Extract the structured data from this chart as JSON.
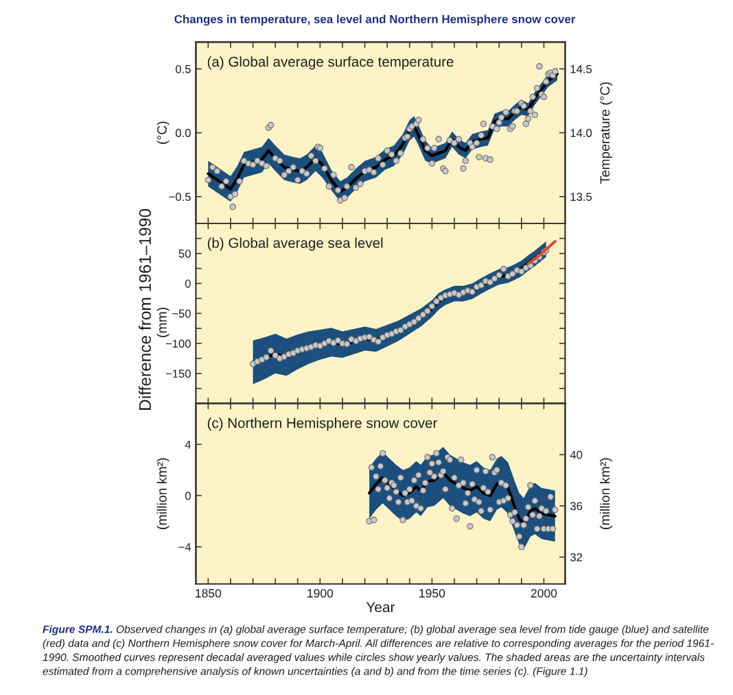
{
  "chart_data": [
    {
      "type": "line",
      "title": "Changes in temperature, sea level and Northern Hemisphere snow cover",
      "subtitle": "(a) Global average surface temperature",
      "ylabel": "(°C)",
      "y2label": "Temperature (°C)",
      "tick_labels": "y",
      "xlim": [
        1844.5,
        2009.5
      ],
      "xticks": [
        1850,
        {
          "value": 1860,
          "label": null
        },
        {
          "value": 1870,
          "label": null
        },
        {
          "value": 1880,
          "label": null
        },
        {
          "value": 1890,
          "label": null
        },
        1900,
        {
          "value": 1910,
          "label": null
        },
        {
          "value": 1920,
          "label": null
        },
        {
          "value": 1930,
          "label": null
        },
        {
          "value": 1940,
          "label": null
        },
        1950,
        {
          "value": 1960,
          "label": null
        },
        {
          "value": 1970,
          "label": null
        },
        {
          "value": 1980,
          "label": null
        },
        {
          "value": 1990,
          "label": null
        },
        2000
      ],
      "ylim": [
        -0.71,
        0.71
      ],
      "yticks": [
        {
          "value": -0.5,
          "label": "−0.5"
        },
        {
          "value": 0,
          "label": "0.0"
        },
        0.5
      ],
      "y2lim": [
        13.29,
        14.71
      ],
      "y2ticks": [
        13.5,
        {
          "value": 14,
          "label": "14.0"
        },
        14.5
      ],
      "series": [
        {
          "color": "#000000",
          "line_style": "solid",
          "x": [
            1850,
            1855,
            1860,
            1863,
            1866,
            1870,
            1874,
            1877,
            1880,
            1884,
            1888,
            1891,
            1894,
            1898,
            1901,
            1905,
            1909,
            1912,
            1916,
            1920,
            1925,
            1929,
            1933,
            1937,
            1940,
            1942,
            1944,
            1947,
            1950,
            1953,
            1956,
            1959,
            1962,
            1965,
            1968,
            1972,
            1975,
            1978,
            1981,
            1984,
            1987,
            1990,
            1993,
            1996,
            1999,
            2002,
            2006
          ],
          "values": [
            -0.32,
            -0.38,
            -0.44,
            -0.36,
            -0.25,
            -0.23,
            -0.21,
            -0.14,
            -0.2,
            -0.27,
            -0.29,
            -0.3,
            -0.27,
            -0.2,
            -0.25,
            -0.37,
            -0.46,
            -0.43,
            -0.36,
            -0.3,
            -0.27,
            -0.21,
            -0.18,
            -0.09,
            0.02,
            0.05,
            -0.02,
            -0.14,
            -0.18,
            -0.16,
            -0.14,
            -0.05,
            -0.11,
            -0.14,
            -0.07,
            -0.05,
            -0.04,
            0.09,
            0.11,
            0.11,
            0.16,
            0.2,
            0.18,
            0.27,
            0.34,
            0.41,
            0.46
          ],
          "lower": [
            -0.42,
            -0.48,
            -0.54,
            -0.46,
            -0.35,
            -0.33,
            -0.31,
            -0.24,
            -0.3,
            -0.37,
            -0.39,
            -0.4,
            -0.37,
            -0.3,
            -0.35,
            -0.45,
            -0.54,
            -0.51,
            -0.44,
            -0.38,
            -0.35,
            -0.29,
            -0.26,
            -0.17,
            -0.06,
            -0.03,
            -0.1,
            -0.22,
            -0.24,
            -0.22,
            -0.2,
            -0.11,
            -0.17,
            -0.2,
            -0.13,
            -0.11,
            -0.1,
            0.03,
            0.05,
            0.05,
            0.1,
            0.14,
            0.13,
            0.22,
            0.29,
            0.36,
            0.41
          ],
          "upper": [
            -0.22,
            -0.28,
            -0.34,
            -0.26,
            -0.15,
            -0.13,
            -0.11,
            -0.04,
            -0.1,
            -0.17,
            -0.19,
            -0.2,
            -0.17,
            -0.1,
            -0.15,
            -0.29,
            -0.38,
            -0.35,
            -0.28,
            -0.22,
            -0.19,
            -0.13,
            -0.1,
            -0.01,
            0.1,
            0.13,
            0.06,
            -0.06,
            -0.12,
            -0.1,
            -0.08,
            0.01,
            -0.05,
            -0.08,
            -0.01,
            0.01,
            0.02,
            0.15,
            0.17,
            0.17,
            0.22,
            0.26,
            0.23,
            0.32,
            0.39,
            0.46,
            0.51
          ]
        },
        {
          "type": "scatter",
          "color": "#c9c9c9",
          "marker": "circle",
          "x": [
            1850,
            1852,
            1854,
            1856,
            1858,
            1860,
            1861,
            1862,
            1864,
            1866,
            1868,
            1870,
            1872,
            1874,
            1876,
            1877,
            1878,
            1880,
            1882,
            1884,
            1886,
            1888,
            1890,
            1892,
            1894,
            1896,
            1898,
            1899,
            1900,
            1902,
            1904,
            1906,
            1908,
            1909,
            1911,
            1912,
            1914,
            1916,
            1918,
            1920,
            1922,
            1924,
            1926,
            1928,
            1930,
            1932,
            1934,
            1936,
            1938,
            1939,
            1940,
            1941,
            1943,
            1944,
            1946,
            1948,
            1950,
            1951,
            1953,
            1955,
            1956,
            1958,
            1960,
            1962,
            1964,
            1965,
            1967,
            1968,
            1970,
            1971,
            1972,
            1973,
            1974,
            1976,
            1977,
            1979,
            1980,
            1981,
            1983,
            1985,
            1986,
            1987,
            1988,
            1990,
            1991,
            1992,
            1993,
            1994,
            1995,
            1996,
            1997,
            1998,
            1999,
            2000,
            2001,
            2002,
            2003,
            2004,
            2005
          ],
          "values": [
            -0.37,
            -0.27,
            -0.3,
            -0.42,
            -0.38,
            -0.5,
            -0.58,
            -0.48,
            -0.38,
            -0.22,
            -0.24,
            -0.25,
            -0.22,
            -0.24,
            -0.26,
            0.04,
            0.06,
            -0.2,
            -0.22,
            -0.33,
            -0.3,
            -0.27,
            -0.37,
            -0.3,
            -0.32,
            -0.18,
            -0.22,
            -0.11,
            -0.12,
            -0.28,
            -0.42,
            -0.33,
            -0.45,
            -0.53,
            -0.51,
            -0.42,
            -0.27,
            -0.43,
            -0.4,
            -0.3,
            -0.29,
            -0.31,
            -0.2,
            -0.25,
            -0.14,
            -0.17,
            -0.22,
            -0.16,
            -0.04,
            -0.03,
            0.03,
            0.05,
            0.07,
            0.1,
            -0.05,
            -0.12,
            -0.24,
            -0.12,
            -0.05,
            -0.28,
            -0.3,
            -0.06,
            -0.08,
            -0.05,
            -0.28,
            -0.22,
            -0.08,
            -0.11,
            -0.08,
            -0.19,
            -0.02,
            0.07,
            -0.2,
            -0.21,
            0.05,
            0.03,
            0.08,
            0.12,
            0.16,
            0.03,
            0.05,
            0.17,
            0.17,
            0.23,
            0.21,
            0.07,
            0.11,
            0.17,
            0.28,
            0.14,
            0.35,
            0.52,
            0.3,
            0.28,
            0.4,
            0.46,
            0.47,
            0.45,
            0.48
          ]
        }
      ]
    },
    {
      "type": "line",
      "subtitle": "(b) Global average sea level",
      "ylabel": "(mm)",
      "tick_labels": "y",
      "annotations": [
        "Difference from 1961–1990"
      ],
      "xlim": [
        1844.5,
        2009.5
      ],
      "xticks": [
        1850,
        {
          "value": 1860,
          "label": null
        },
        {
          "value": 1870,
          "label": null
        },
        {
          "value": 1880,
          "label": null
        },
        {
          "value": 1890,
          "label": null
        },
        1900,
        {
          "value": 1910,
          "label": null
        },
        {
          "value": 1920,
          "label": null
        },
        {
          "value": 1930,
          "label": null
        },
        {
          "value": 1940,
          "label": null
        },
        1950,
        {
          "value": 1960,
          "label": null
        },
        {
          "value": 1970,
          "label": null
        },
        {
          "value": 1980,
          "label": null
        },
        {
          "value": 1990,
          "label": null
        },
        2000
      ],
      "ylim": [
        -200,
        100
      ],
      "yticks": [
        {
          "value": -175,
          "label": null
        },
        {
          "value": -150,
          "label": "−150"
        },
        {
          "value": -125,
          "label": null
        },
        {
          "value": -100,
          "label": "−100"
        },
        {
          "value": -75,
          "label": null
        },
        {
          "value": -50,
          "label": "−50"
        },
        {
          "value": -25,
          "label": null
        },
        0,
        {
          "value": 25,
          "label": null
        },
        50,
        {
          "value": 75,
          "label": null
        }
      ],
      "series": [
        {
          "color": "#000000",
          "line_style": "solid",
          "x": [
            1870,
            1875,
            1880,
            1885,
            1890,
            1895,
            1900,
            1905,
            1910,
            1915,
            1920,
            1925,
            1930,
            1935,
            1940,
            1945,
            1950,
            1953,
            1956,
            1960,
            1964,
            1968,
            1972,
            1976,
            1980,
            1984,
            1987,
            1990,
            1993,
            1996,
            1999,
            2001
          ],
          "values": [
            -131,
            -125,
            -117,
            -123,
            -114,
            -107,
            -102,
            -98,
            -102,
            -97,
            -92,
            -95,
            -87,
            -79,
            -68,
            -57,
            -42,
            -30,
            -23,
            -17,
            -17,
            -13,
            -4,
            4,
            11,
            14,
            19,
            25,
            34,
            42,
            51,
            57
          ],
          "lower": [
            -168,
            -160,
            -150,
            -154,
            -143,
            -134,
            -127,
            -122,
            -124,
            -118,
            -112,
            -114,
            -105,
            -96,
            -84,
            -72,
            -56,
            -44,
            -36,
            -30,
            -30,
            -26,
            -17,
            -9,
            -2,
            1,
            6,
            12,
            21,
            29,
            38,
            44
          ],
          "upper": [
            -95,
            -90,
            -84,
            -92,
            -85,
            -80,
            -77,
            -74,
            -80,
            -76,
            -72,
            -76,
            -69,
            -62,
            -52,
            -42,
            -28,
            -16,
            -10,
            -4,
            -4,
            0,
            9,
            17,
            24,
            27,
            32,
            38,
            47,
            55,
            64,
            70
          ]
        },
        {
          "type": "scatter",
          "color": "#c9c9c9",
          "marker": "circle",
          "x": [
            1870,
            1872,
            1874,
            1876,
            1878,
            1880,
            1882,
            1884,
            1886,
            1888,
            1890,
            1892,
            1894,
            1896,
            1898,
            1900,
            1902,
            1904,
            1906,
            1908,
            1910,
            1912,
            1914,
            1916,
            1918,
            1920,
            1922,
            1924,
            1926,
            1928,
            1930,
            1932,
            1934,
            1936,
            1938,
            1940,
            1942,
            1944,
            1946,
            1948,
            1950,
            1952,
            1954,
            1956,
            1958,
            1960,
            1962,
            1964,
            1966,
            1968,
            1970,
            1972,
            1974,
            1976,
            1978,
            1980,
            1982,
            1984,
            1986,
            1988,
            1990,
            1992,
            1994,
            1996,
            1998,
            2000,
            2001
          ],
          "values": [
            -134,
            -130,
            -127,
            -123,
            -112,
            -120,
            -125,
            -122,
            -118,
            -116,
            -112,
            -110,
            -108,
            -106,
            -103,
            -104,
            -100,
            -96,
            -99,
            -95,
            -100,
            -101,
            -93,
            -96,
            -92,
            -90,
            -89,
            -94,
            -97,
            -90,
            -86,
            -84,
            -80,
            -78,
            -72,
            -68,
            -64,
            -58,
            -52,
            -46,
            -38,
            -30,
            -24,
            -20,
            -18,
            -16,
            -19,
            -15,
            -12,
            -14,
            -6,
            -3,
            4,
            2,
            8,
            14,
            24,
            12,
            16,
            22,
            20,
            26,
            30,
            38,
            44,
            52,
            55
          ]
        },
        {
          "type": "line",
          "color": "#e2492f",
          "line_style": "solid",
          "x": [
            1993,
            1996,
            1999,
            2002,
            2005
          ],
          "values": [
            33,
            41,
            50,
            60,
            70
          ]
        }
      ]
    },
    {
      "type": "line",
      "subtitle": "(c) Northern Hemisphere snow cover",
      "ylabel": "(million km²)",
      "y2label": "(million km²)",
      "xlabel": "Year",
      "annotations": [
        "Figure SPM.1.",
        "Observed changes in (a) global average surface temperature; (b) global average sea level from tide gauge (blue) and satellite",
        "(red) data and (c) Northern Hemisphere snow cover for March-April. All differences are relative to corresponding averages for the period 1961-",
        "1990. Smoothed curves represent decadal averaged values while circles show yearly values. The shaded areas are the uncertainty intervals",
        "estimated from a comprehensive analysis of known uncertainties (a and b) and from the time series (c). (Figure 1.1)"
      ],
      "xlim": [
        1844.5,
        2009.5
      ],
      "xticks": [
        1850,
        {
          "value": 1860,
          "label": null
        },
        {
          "value": 1870,
          "label": null
        },
        {
          "value": 1880,
          "label": null
        },
        {
          "value": 1890,
          "label": null
        },
        1900,
        {
          "value": 1910,
          "label": null
        },
        {
          "value": 1920,
          "label": null
        },
        {
          "value": 1930,
          "label": null
        },
        {
          "value": 1940,
          "label": null
        },
        1950,
        {
          "value": 1960,
          "label": null
        },
        {
          "value": 1970,
          "label": null
        },
        {
          "value": 1980,
          "label": null
        },
        {
          "value": 1990,
          "label": null
        },
        2000
      ],
      "ylim": [
        -6.9,
        7.2
      ],
      "yticks": [
        {
          "value": -4,
          "label": "−4"
        },
        0,
        4
      ],
      "y2lim": [
        29.9,
        44.0
      ],
      "y2ticks": [
        32,
        36,
        40
      ],
      "series": [
        {
          "color": "#000000",
          "line_style": "solid",
          "x": [
            1922,
            1925,
            1928,
            1931,
            1934,
            1937,
            1940,
            1943,
            1945,
            1948,
            1951,
            1955,
            1958,
            1961,
            1964,
            1967,
            1970,
            1973,
            1976,
            1979,
            1981,
            1984,
            1987,
            1989,
            1991,
            1994,
            1996,
            1999,
            2002,
            2005
          ],
          "values": [
            0.2,
            0.9,
            1.4,
            0.9,
            0.4,
            0.0,
            0.2,
            0.7,
            0.4,
            1.1,
            1.2,
            1.8,
            1.2,
            0.9,
            0.6,
            0.4,
            0.7,
            0.2,
            0.0,
            0.9,
            1.1,
            0.6,
            -0.9,
            -1.8,
            -2.2,
            -1.2,
            -1.0,
            -1.4,
            -1.5,
            -1.6
          ],
          "lower": [
            -1.8,
            -1.1,
            -0.6,
            -1.1,
            -1.6,
            -2.0,
            -1.8,
            -1.3,
            -1.6,
            -0.9,
            -0.8,
            -0.2,
            -0.8,
            -1.1,
            -1.4,
            -1.6,
            -1.3,
            -1.8,
            -2.0,
            -1.1,
            -0.9,
            -1.4,
            -2.9,
            -3.8,
            -4.2,
            -3.2,
            -3.0,
            -3.4,
            -3.5,
            -3.6
          ],
          "upper": [
            2.2,
            2.9,
            3.4,
            2.9,
            2.4,
            2.0,
            2.2,
            2.7,
            2.4,
            3.1,
            3.2,
            3.8,
            3.2,
            2.9,
            2.6,
            2.4,
            2.7,
            2.2,
            2.0,
            2.9,
            3.1,
            2.6,
            1.1,
            0.2,
            -0.2,
            0.8,
            1.0,
            0.6,
            0.5,
            0.4
          ]
        },
        {
          "type": "scatter",
          "color": "#c9c9c9",
          "marker": "circle",
          "x": [
            1922,
            1923,
            1924,
            1925,
            1926,
            1927,
            1928,
            1929,
            1930,
            1931,
            1932,
            1933,
            1934,
            1935,
            1936,
            1937,
            1938,
            1939,
            1940,
            1941,
            1942,
            1943,
            1944,
            1945,
            1946,
            1947,
            1948,
            1949,
            1950,
            1951,
            1952,
            1953,
            1954,
            1955,
            1956,
            1957,
            1958,
            1959,
            1960,
            1961,
            1962,
            1963,
            1964,
            1965,
            1966,
            1967,
            1968,
            1969,
            1970,
            1971,
            1972,
            1973,
            1974,
            1975,
            1976,
            1977,
            1978,
            1979,
            1980,
            1981,
            1982,
            1983,
            1984,
            1985,
            1986,
            1987,
            1988,
            1989,
            1990,
            1991,
            1992,
            1993,
            1994,
            1995,
            1996,
            1997,
            1998,
            1999,
            2000,
            2001,
            2002,
            2003,
            2004,
            2005
          ],
          "values": [
            -2.0,
            2.2,
            -1.9,
            1.5,
            0.5,
            2.3,
            3.3,
            1.2,
            0.6,
            -0.2,
            1.0,
            0.8,
            0.3,
            -0.5,
            1.4,
            -1.9,
            0.2,
            -0.5,
            0.5,
            -0.4,
            1.2,
            -0.8,
            1.6,
            -1.0,
            0.4,
            1.0,
            3.0,
            1.8,
            2.5,
            1.5,
            3.3,
            2.6,
            1.6,
            1.9,
            0.5,
            3.0,
            2.8,
            -1.0,
            1.4,
            -1.8,
            0.8,
            2.8,
            1.0,
            -0.6,
            0.2,
            -2.4,
            0.9,
            -0.3,
            2.0,
            -0.5,
            -1.2,
            0.6,
            1.9,
            0.3,
            -1.1,
            3.0,
            1.8,
            2.0,
            -0.5,
            1.0,
            -0.4,
            0.8,
            -0.2,
            -1.5,
            -2.0,
            -1.3,
            -2.3,
            -3.2,
            -4.0,
            -2.3,
            -1.8,
            -0.9,
            0.8,
            -1.5,
            -0.4,
            -2.6,
            -1.6,
            -1.0,
            -2.6,
            -1.2,
            -2.6,
            -0.1,
            -2.6,
            -1.1
          ]
        }
      ]
    }
  ]
}
